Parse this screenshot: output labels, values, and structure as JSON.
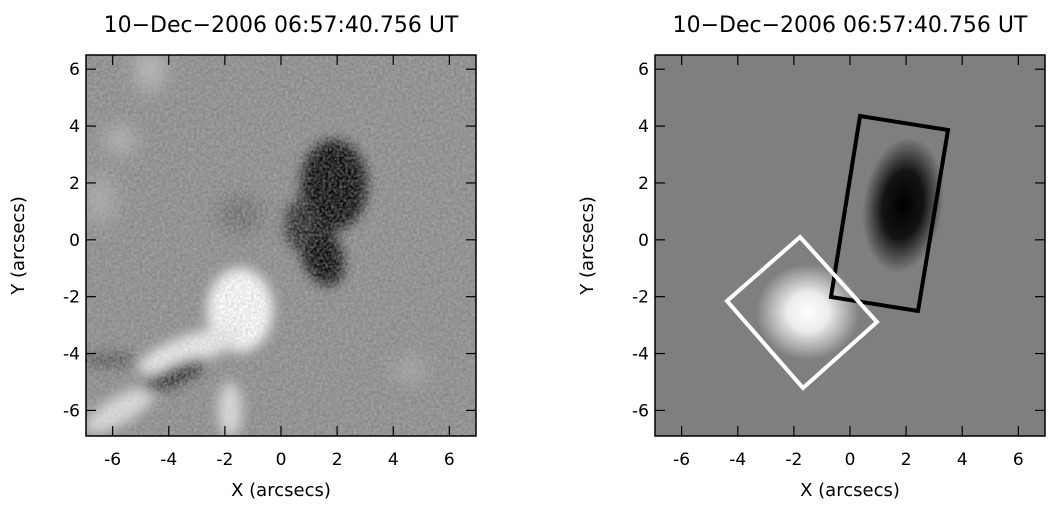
{
  "chart_data": [
    {
      "type": "image",
      "title": "10−Dec−2006 06:57:40.756 UT",
      "xlabel": "X (arcsecs)",
      "ylabel": "Y (arcsecs)",
      "xlim": [
        -6.95,
        6.95
      ],
      "ylim": [
        -6.9,
        6.5
      ],
      "xticks": [
        -6,
        -4,
        -2,
        0,
        2,
        4,
        6
      ],
      "yticks": [
        -6,
        -4,
        -2,
        0,
        2,
        4,
        6
      ]
    },
    {
      "type": "image",
      "title": "10−Dec−2006 06:57:40.756 UT",
      "xlabel": "X (arcsecs)",
      "ylabel": "Y (arcsecs)",
      "xlim": [
        -6.95,
        6.95
      ],
      "ylim": [
        -6.9,
        6.5
      ],
      "xticks": [
        -6,
        -4,
        -2,
        0,
        2,
        4,
        6
      ],
      "yticks": [
        -6,
        -4,
        -2,
        0,
        2,
        4,
        6
      ]
    }
  ]
}
